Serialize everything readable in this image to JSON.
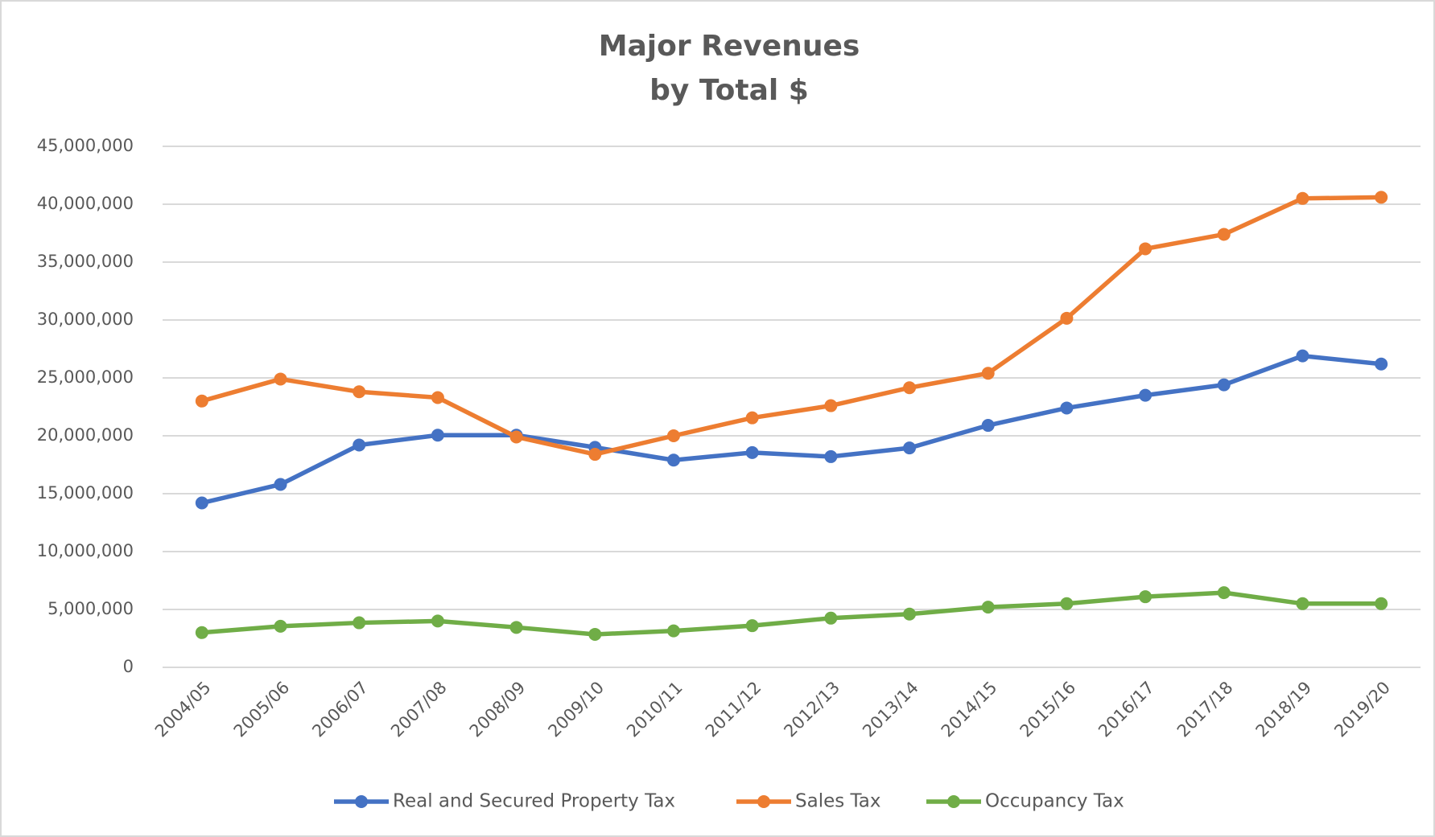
{
  "chart_data": {
    "type": "line",
    "title": [
      "Major Revenues",
      "by Total $"
    ],
    "categories": [
      "2004/05",
      "2005/06",
      "2006/07",
      "2007/08",
      "2008/09",
      "2009/10",
      "2010/11",
      "2011/12",
      "2012/13",
      "2013/14",
      "2014/15",
      "2015/16",
      "2016/17",
      "2017/18",
      "2018/19",
      "2019/20"
    ],
    "series": [
      {
        "name": "Real and Secured Property Tax",
        "color": "#4472c4",
        "values": [
          14200000,
          15800000,
          19200000,
          20050000,
          20050000,
          19000000,
          17900000,
          18550000,
          18200000,
          18950000,
          20900000,
          22400000,
          23500000,
          24400000,
          26900000,
          26200000
        ]
      },
      {
        "name": "Sales Tax",
        "color": "#ed7d31",
        "values": [
          23000000,
          24900000,
          23800000,
          23300000,
          19900000,
          18400000,
          20000000,
          21550000,
          22600000,
          24150000,
          25400000,
          30150000,
          36150000,
          37400000,
          40500000,
          40600000
        ]
      },
      {
        "name": "Occupancy Tax",
        "color": "#70ad47",
        "values": [
          3000000,
          3550000,
          3850000,
          4000000,
          3450000,
          2850000,
          3150000,
          3600000,
          4250000,
          4600000,
          5200000,
          5500000,
          6100000,
          6450000,
          5500000,
          5500000
        ]
      }
    ],
    "ylim": [
      0,
      45000000
    ],
    "yticks": [
      0,
      {
        "value": 5000000,
        "label": "5,000,000"
      },
      {
        "value": 10000000,
        "label": "10,000,000"
      },
      {
        "value": 15000000,
        "label": "15,000,000"
      },
      {
        "value": 20000000,
        "label": "20,000,000"
      },
      {
        "value": 25000000,
        "label": "25,000,000"
      },
      {
        "value": 30000000,
        "label": "30,000,000"
      },
      {
        "value": 35000000,
        "label": "35,000,000"
      },
      {
        "value": 40000000,
        "label": "40,000,000"
      },
      {
        "value": 45000000,
        "label": "45,000,000"
      }
    ],
    "grid": true,
    "legend": "bottom"
  }
}
